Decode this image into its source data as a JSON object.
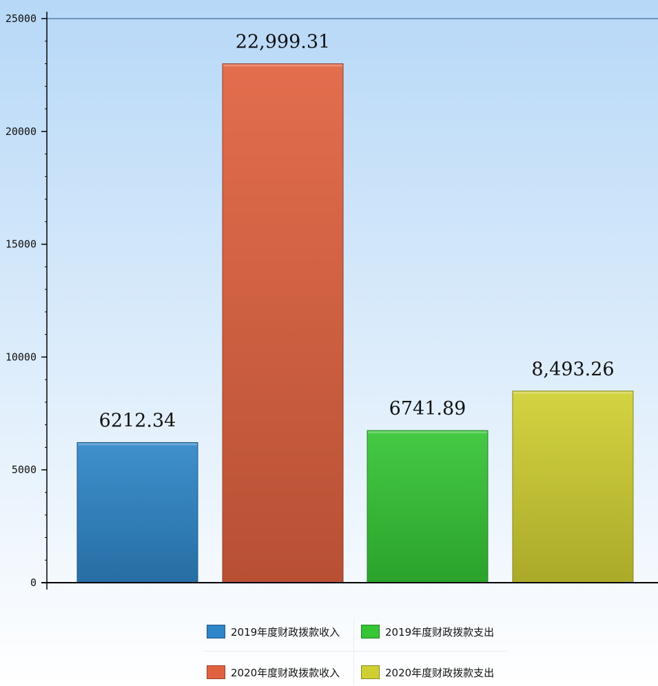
{
  "chart_data": {
    "type": "bar",
    "title": "",
    "xlabel": "",
    "ylabel": "",
    "categories": [
      "2019年度财政拨款收入",
      "2020年度财政拨款收入",
      "2019年度财政拨款支出",
      "2020年度财政拨款支出"
    ],
    "values": [
      6212.34,
      22999.31,
      6741.89,
      8493.26
    ],
    "value_labels": [
      "6212.34",
      "22,999.31",
      "6741.89",
      "8,493.26"
    ],
    "colors": [
      "#2e86c8",
      "#e0613f",
      "#35c535",
      "#d0cf32"
    ],
    "ylim": [
      0,
      25000
    ],
    "yticks": [
      0,
      5000,
      10000,
      15000,
      20000,
      25000
    ],
    "ytick_labels": [
      "0",
      "5000",
      "10000",
      "15000",
      "20000",
      "25000"
    ],
    "grid": false,
    "legend": {
      "position": "bottom",
      "items": [
        {
          "label": "2019年度财政拨款收入",
          "color": "#2e86c8"
        },
        {
          "label": "2019年度财政拨款支出",
          "color": "#35c535"
        },
        {
          "label": "2020年度财政拨款收入",
          "color": "#e0613f"
        },
        {
          "label": "2020年度财政拨款支出",
          "color": "#d0cf32"
        }
      ]
    },
    "background": {
      "top": "#b7d8f7",
      "bottom": "#ffffff"
    }
  }
}
